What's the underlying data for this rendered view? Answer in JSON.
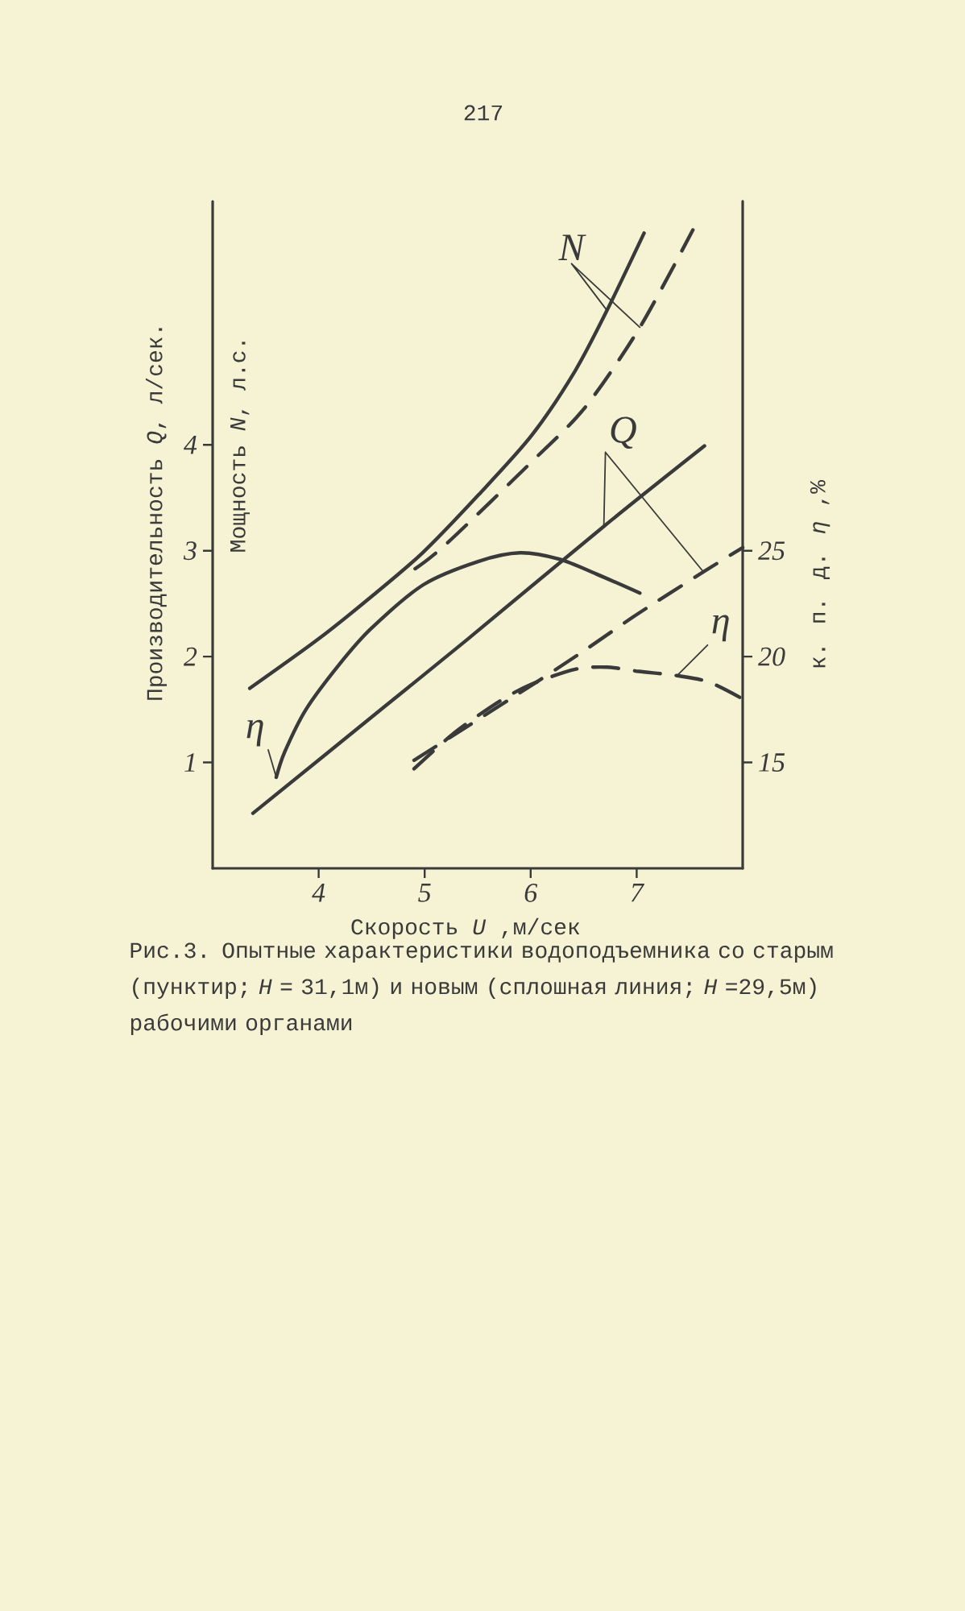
{
  "chart_data": {
    "type": "line",
    "xlabel": "Скорость *U* ,м/сек",
    "ylabel": "Производительность *Q*, л/сек.",
    "y2label": "к. п. д. *η* ,%",
    "xlim": [
      3,
      8
    ],
    "xticks": [
      4,
      5,
      6,
      7
    ],
    "ylim": [
      0,
      6.3
    ],
    "yticks": [
      1,
      2,
      3,
      4
    ],
    "y2lim": [
      10,
      41.5
    ],
    "y2ticks": [
      15,
      20,
      25
    ],
    "series": [
      {
        "name": "N",
        "color": "#3a3a3a",
        "line_style": "solid",
        "x": [
          3.35,
          3.99,
          4.49,
          4.98,
          5.51,
          6.01,
          6.42,
          6.72,
          7.07
        ],
        "values": [
          1.7,
          2.16,
          2.56,
          2.98,
          3.53,
          4.09,
          4.7,
          5.27,
          6.0
        ]
      },
      {
        "color": "#3a3a3a",
        "line_style": "dashed",
        "x": [
          4.91,
          5.2,
          6.01,
          6.51,
          7.03,
          7.53
        ],
        "values": [
          2.83,
          3.06,
          3.84,
          4.35,
          5.11,
          6.03
        ]
      },
      {
        "name": "Q",
        "color": "#3a3a3a",
        "line_style": "solid",
        "x": [
          3.38,
          4.6,
          5.4,
          6.69,
          7.64
        ],
        "values": [
          0.52,
          1.51,
          2.16,
          3.23,
          3.99
        ]
      },
      {
        "color": "#3a3a3a",
        "line_style": "dashed",
        "x": [
          4.9,
          6.01,
          6.51,
          7.02,
          7.63,
          8.0
        ],
        "values": [
          1.02,
          1.73,
          2.06,
          2.41,
          2.8,
          3.03
        ]
      },
      {
        "name": "η",
        "color": "#3a3a3a",
        "line_style": "solid",
        "axis": "y2",
        "x": [
          3.6,
          3.68,
          3.88,
          4.19,
          4.49,
          4.99,
          5.51,
          5.9,
          6.27,
          6.62,
          7.03
        ],
        "values": [
          14.3,
          15.5,
          17.5,
          19.6,
          21.3,
          23.4,
          24.5,
          24.9,
          24.6,
          23.9,
          23.0
        ]
      },
      {
        "name": "η",
        "color": "#3a3a3a",
        "line_style": "dashed",
        "axis": "y2",
        "x": [
          4.9,
          5.28,
          5.71,
          6.01,
          6.42,
          6.72,
          7.02,
          7.38,
          7.68,
          8.0
        ],
        "values": [
          14.7,
          16.4,
          17.9,
          18.7,
          19.4,
          19.5,
          19.3,
          19.1,
          18.8,
          18.0
        ]
      }
    ],
    "annotations": [
      "217",
      "Мощность *N*, л.с.",
      "Рис.3. Опытные характеристики водоподъемника со старым (пунктир; *H* = 31,1м) и новым (сплошная линия; *H* =29,5м) рабочими органами"
    ]
  }
}
